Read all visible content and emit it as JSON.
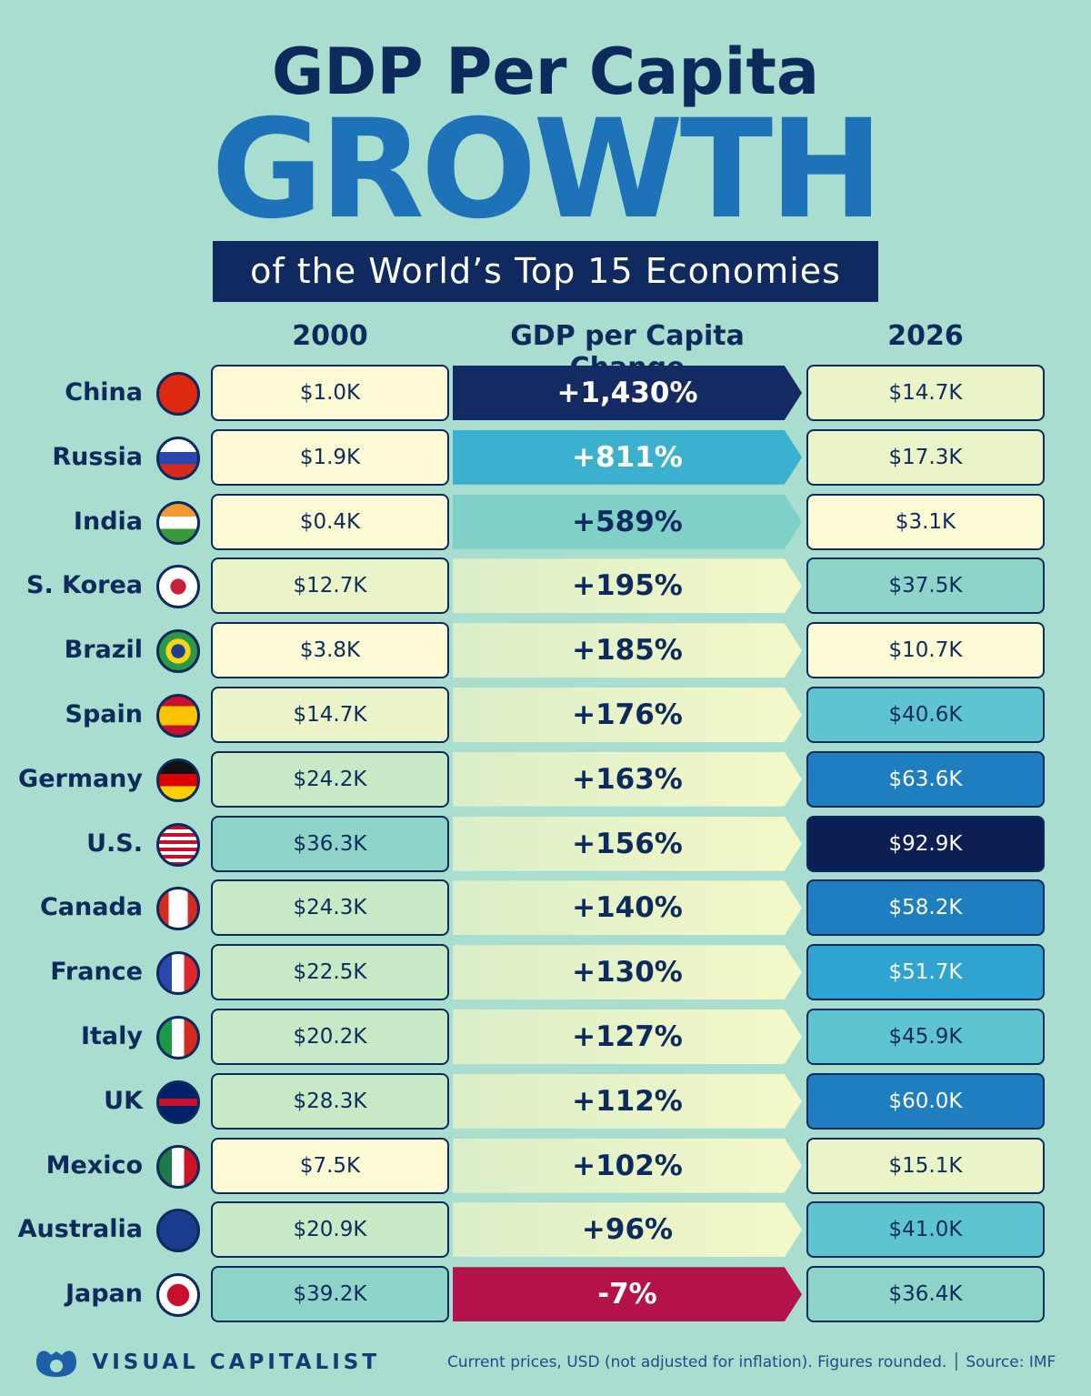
{
  "title": {
    "line1": "GDP Per Capita",
    "line2": "GROWTH",
    "line3": "of the World’s Top 15 Economies"
  },
  "chart_data": {
    "type": "table",
    "columns": [
      "2000",
      "GDP per Capita Change",
      "2026"
    ],
    "unit": "USD thousands",
    "rows": [
      {
        "country": "China",
        "v2000": "$1.0K",
        "change": "+1,430%",
        "v2026": "$14.7K",
        "a": 1.0,
        "b": 14.7,
        "pct": 1430,
        "flag": "cn"
      },
      {
        "country": "Russia",
        "v2000": "$1.9K",
        "change": "+811%",
        "v2026": "$17.3K",
        "a": 1.9,
        "b": 17.3,
        "pct": 811,
        "flag": "ru"
      },
      {
        "country": "India",
        "v2000": "$0.4K",
        "change": "+589%",
        "v2026": "$3.1K",
        "a": 0.4,
        "b": 3.1,
        "pct": 589,
        "flag": "in"
      },
      {
        "country": "S. Korea",
        "v2000": "$12.7K",
        "change": "+195%",
        "v2026": "$37.5K",
        "a": 12.7,
        "b": 37.5,
        "pct": 195,
        "flag": "kr"
      },
      {
        "country": "Brazil",
        "v2000": "$3.8K",
        "change": "+185%",
        "v2026": "$10.7K",
        "a": 3.8,
        "b": 10.7,
        "pct": 185,
        "flag": "br"
      },
      {
        "country": "Spain",
        "v2000": "$14.7K",
        "change": "+176%",
        "v2026": "$40.6K",
        "a": 14.7,
        "b": 40.6,
        "pct": 176,
        "flag": "es"
      },
      {
        "country": "Germany",
        "v2000": "$24.2K",
        "change": "+163%",
        "v2026": "$63.6K",
        "a": 24.2,
        "b": 63.6,
        "pct": 163,
        "flag": "de"
      },
      {
        "country": "U.S.",
        "v2000": "$36.3K",
        "change": "+156%",
        "v2026": "$92.9K",
        "a": 36.3,
        "b": 92.9,
        "pct": 156,
        "flag": "us"
      },
      {
        "country": "Canada",
        "v2000": "$24.3K",
        "change": "+140%",
        "v2026": "$58.2K",
        "a": 24.3,
        "b": 58.2,
        "pct": 140,
        "flag": "ca"
      },
      {
        "country": "France",
        "v2000": "$22.5K",
        "change": "+130%",
        "v2026": "$51.7K",
        "a": 22.5,
        "b": 51.7,
        "pct": 130,
        "flag": "fr"
      },
      {
        "country": "Italy",
        "v2000": "$20.2K",
        "change": "+127%",
        "v2026": "$45.9K",
        "a": 20.2,
        "b": 45.9,
        "pct": 127,
        "flag": "it"
      },
      {
        "country": "UK",
        "v2000": "$28.3K",
        "change": "+112%",
        "v2026": "$60.0K",
        "a": 28.3,
        "b": 60.0,
        "pct": 112,
        "flag": "gb"
      },
      {
        "country": "Mexico",
        "v2000": "$7.5K",
        "change": "+102%",
        "v2026": "$15.1K",
        "a": 7.5,
        "b": 15.1,
        "pct": 102,
        "flag": "mx"
      },
      {
        "country": "Australia",
        "v2000": "$20.9K",
        "change": "+96%",
        "v2026": "$41.0K",
        "a": 20.9,
        "b": 41.0,
        "pct": 96,
        "flag": "au"
      },
      {
        "country": "Japan",
        "v2000": "$39.2K",
        "change": "-7%",
        "v2026": "$36.4K",
        "a": 39.2,
        "b": 36.4,
        "pct": -7,
        "flag": "jp"
      }
    ]
  },
  "colors": {
    "navy": "#102a60",
    "blue": "#1d72b8",
    "negative": "#b3134a",
    "bg": "#a9ddd0"
  },
  "footer": {
    "brand": "VISUAL CAPITALIST",
    "note": "Current prices, USD (not adjusted for inflation). Figures rounded.",
    "source": "Source: IMF"
  }
}
